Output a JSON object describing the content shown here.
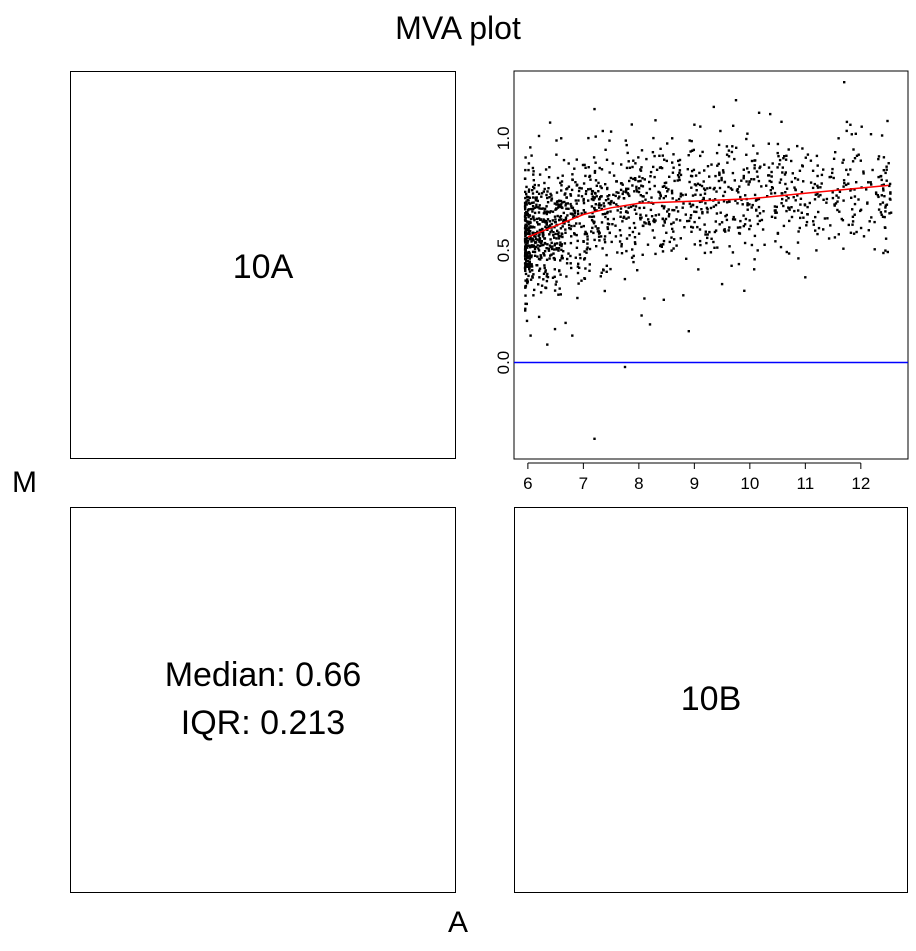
{
  "title": "MVA plot",
  "xlabel": "A",
  "ylabel": "M",
  "panels": {
    "top_left_label": "10A",
    "bottom_right_label": "10B",
    "stats_median": "Median: 0.66",
    "stats_iqr": "IQR: 0.213"
  },
  "chart_data": {
    "type": "scatter",
    "xlim": [
      5.75,
      12.85
    ],
    "ylim": [
      -0.43,
      1.3
    ],
    "x_ticks": [
      "6",
      "7",
      "8",
      "9",
      "10",
      "11",
      "12"
    ],
    "y_ticks": [
      "0.0",
      "0.5",
      "1.0"
    ],
    "point_color": "#000000",
    "reference_line": {
      "y": 0.0,
      "color": "#0000ff"
    },
    "loess_curve": {
      "color": "#ff0000",
      "x": [
        6.0,
        6.5,
        7.0,
        7.5,
        8.0,
        9.0,
        10.0,
        11.0,
        12.5
      ],
      "y": [
        0.56,
        0.61,
        0.66,
        0.69,
        0.71,
        0.72,
        0.73,
        0.755,
        0.79
      ]
    },
    "points": [
      [
        6.1,
        0.3
      ],
      [
        6.05,
        0.12
      ],
      [
        6.35,
        0.08
      ],
      [
        6.8,
        0.12
      ],
      [
        7.75,
        -0.02
      ],
      [
        7.2,
        -0.34
      ],
      [
        8.05,
        0.21
      ],
      [
        8.2,
        0.17
      ],
      [
        8.9,
        0.14
      ],
      [
        9.9,
        0.32
      ],
      [
        11.0,
        0.38
      ],
      [
        11.7,
        1.25
      ],
      [
        9.75,
        1.17
      ],
      [
        9.35,
        1.14
      ],
      [
        7.2,
        1.13
      ],
      [
        12.4,
        0.65
      ],
      [
        12.45,
        0.7
      ],
      [
        12.0,
        0.9
      ],
      [
        11.6,
        1.0
      ],
      [
        11.1,
        0.9
      ],
      [
        10.7,
        0.95
      ],
      [
        10.5,
        0.87
      ],
      [
        11.2,
        0.5
      ],
      [
        10.9,
        0.6
      ],
      [
        10.4,
        0.65
      ],
      [
        8.45,
        0.28
      ],
      [
        8.8,
        0.3
      ],
      [
        9.5,
        0.35
      ],
      [
        7.9,
        0.9
      ],
      [
        8.6,
        1.0
      ],
      [
        6.2,
        1.01
      ],
      [
        6.4,
        1.07
      ],
      [
        6.6,
        1.0
      ],
      [
        7.5,
        1.03
      ],
      [
        8.3,
        1.08
      ]
    ],
    "cloud_points": 1500
  }
}
